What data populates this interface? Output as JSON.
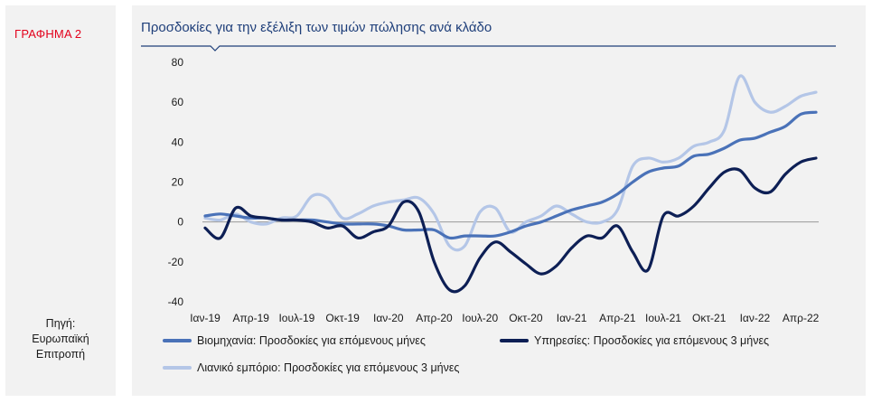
{
  "figure_label": "ΓΡΑΦΗΜΑ 2",
  "source": [
    "Πηγή:",
    "Ευρωπαϊκή",
    "Επιτροπή"
  ],
  "chart_data": {
    "type": "line",
    "title": "Προσδοκίες για την εξέλιξη των τιμών πώλησης ανά κλάδο",
    "xlabel": "",
    "ylabel": "",
    "ylim": [
      -40,
      80
    ],
    "yticks": [
      80,
      60,
      40,
      20,
      0,
      -20,
      -40
    ],
    "tick_labels": [
      "Ιαν-19",
      "Απρ-19",
      "Ιουλ-19",
      "Οκτ-19",
      "Ιαν-20",
      "Απρ-20",
      "Ιουλ-20",
      "Οκτ-20",
      "Ιαν-21",
      "Απρ-21",
      "Ιουλ-21",
      "Οκτ-21",
      "Ιαν-22",
      "Απρ-22"
    ],
    "tick_positions": [
      0,
      3,
      6,
      9,
      12,
      15,
      18,
      21,
      24,
      27,
      30,
      33,
      36,
      39
    ],
    "x": [
      0,
      1,
      2,
      3,
      4,
      5,
      6,
      7,
      8,
      9,
      10,
      11,
      12,
      13,
      14,
      15,
      16,
      17,
      18,
      19,
      20,
      21,
      22,
      23,
      24,
      25,
      26,
      27,
      28,
      29,
      30,
      31,
      32,
      33,
      34,
      35,
      36,
      37,
      38,
      39,
      40
    ],
    "series": [
      {
        "name": "Βιομηχανία: Προσδοκίες για επόμενους μήνες",
        "color": "#4a72b8",
        "values": [
          3,
          4,
          3,
          2,
          2,
          1,
          1,
          1,
          0,
          -1,
          -1,
          -1,
          -2,
          -4,
          -4,
          -4,
          -8,
          -7,
          -7,
          -7,
          -5,
          -2,
          0,
          3,
          6,
          8,
          10,
          14,
          20,
          25,
          27,
          28,
          33,
          34,
          37,
          41,
          42,
          45,
          48,
          54,
          55
        ]
      },
      {
        "name": "Υπηρεσίες: Προσδοκίες για επόμενους 3 μήνες",
        "color": "#0d1f55",
        "values": [
          -3,
          -8,
          7,
          3,
          2,
          1,
          1,
          0,
          -3,
          -2,
          -8,
          -5,
          -2,
          10,
          5,
          -20,
          -34,
          -32,
          -18,
          -10,
          -15,
          -21,
          -26,
          -22,
          -13,
          -7,
          -8,
          -2,
          -15,
          -24,
          3,
          3,
          8,
          17,
          25,
          26,
          17,
          15,
          24,
          30,
          32
        ]
      },
      {
        "name": "Λιανικό εμπόριο: Προσδοκίες για επόμενους 3 μήνες",
        "color": "#b4c6e7",
        "values": [
          2,
          1,
          4,
          0,
          -1,
          2,
          3,
          13,
          12,
          2,
          4,
          8,
          10,
          11,
          12,
          4,
          -12,
          -12,
          5,
          7,
          -5,
          0,
          3,
          8,
          4,
          0,
          0,
          6,
          28,
          32,
          30,
          32,
          38,
          40,
          46,
          73,
          60,
          55,
          58,
          63,
          65
        ]
      }
    ],
    "legend_position": "bottom"
  }
}
